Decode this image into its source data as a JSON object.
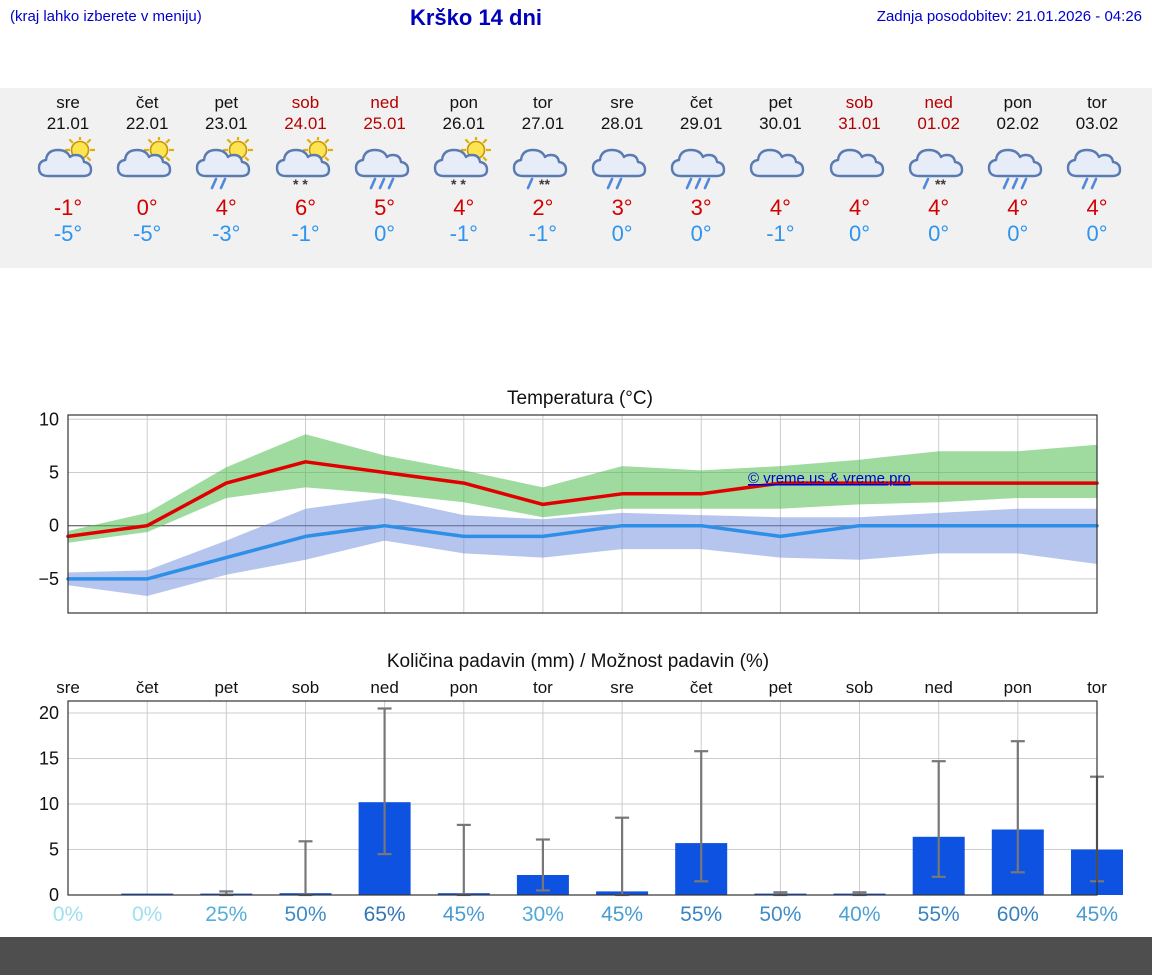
{
  "header": {
    "menu_hint": "(kraj lahko izberete v meniju)",
    "title": "Krško 14 dni",
    "last_update": "Zadnja posodobitev: 21.01.2026 - 04:26"
  },
  "colors": {
    "header_text": "#0000cc",
    "strip_bg": "#f1f1f1",
    "tmax": "#d40000",
    "tmin": "#2d95f0",
    "weekend": "#b50000",
    "footer_bg": "#4e4e4e"
  },
  "forecast": {
    "days": [
      {
        "day": "sre",
        "date": "21.01",
        "weekend": false,
        "icon": "sun-cloud",
        "tmax": "-1°",
        "tmin": "-5°"
      },
      {
        "day": "čet",
        "date": "22.01",
        "weekend": false,
        "icon": "sun-cloud",
        "tmax": "0°",
        "tmin": "-5°"
      },
      {
        "day": "pet",
        "date": "23.01",
        "weekend": false,
        "icon": "sun-cloud-rain2",
        "tmax": "4°",
        "tmin": "-3°"
      },
      {
        "day": "sob",
        "date": "24.01",
        "weekend": true,
        "icon": "sun-cloud-snow2",
        "tmax": "6°",
        "tmin": "-1°"
      },
      {
        "day": "ned",
        "date": "25.01",
        "weekend": true,
        "icon": "cloud-rain3",
        "tmax": "5°",
        "tmin": "0°"
      },
      {
        "day": "pon",
        "date": "26.01",
        "weekend": false,
        "icon": "sun-cloud-snow2",
        "tmax": "4°",
        "tmin": "-1°"
      },
      {
        "day": "tor",
        "date": "27.01",
        "weekend": false,
        "icon": "cloud-sleet",
        "tmax": "2°",
        "tmin": "-1°"
      },
      {
        "day": "sre",
        "date": "28.01",
        "weekend": false,
        "icon": "cloud-rain2",
        "tmax": "3°",
        "tmin": "0°"
      },
      {
        "day": "čet",
        "date": "29.01",
        "weekend": false,
        "icon": "cloud-rain3",
        "tmax": "3°",
        "tmin": "0°"
      },
      {
        "day": "pet",
        "date": "30.01",
        "weekend": false,
        "icon": "cloud",
        "tmax": "4°",
        "tmin": "-1°"
      },
      {
        "day": "sob",
        "date": "31.01",
        "weekend": true,
        "icon": "cloud",
        "tmax": "4°",
        "tmin": "0°"
      },
      {
        "day": "ned",
        "date": "01.02",
        "weekend": true,
        "icon": "cloud-sleet",
        "tmax": "4°",
        "tmin": "0°"
      },
      {
        "day": "pon",
        "date": "02.02",
        "weekend": false,
        "icon": "cloud-rain3",
        "tmax": "4°",
        "tmin": "0°"
      },
      {
        "day": "tor",
        "date": "03.02",
        "weekend": false,
        "icon": "cloud-rain2",
        "tmax": "4°",
        "tmin": "0°"
      }
    ]
  },
  "chart_data": [
    {
      "type": "line",
      "title": "Temperatura (°C)",
      "watermark": "© vreme.us & vreme.pro",
      "x_days": [
        "sre",
        "čet",
        "pet",
        "sob",
        "ned",
        "pon",
        "tor",
        "sre",
        "čet",
        "pet",
        "sob",
        "ned",
        "pon",
        "tor"
      ],
      "ylim": [
        -8.2,
        10.4
      ],
      "yticks": [
        -5,
        0,
        5,
        10
      ],
      "grid": true,
      "series": [
        {
          "name": "max temperatura",
          "color": "#e00000",
          "values": [
            -1,
            0,
            4,
            6,
            5,
            4,
            2,
            3,
            3,
            4,
            4,
            4,
            4,
            4
          ]
        },
        {
          "name": "min temperatura",
          "color": "#2e8fe8",
          "values": [
            -5,
            -5,
            -3,
            -1,
            0,
            -1,
            -1,
            0,
            0,
            -1,
            0,
            0,
            0,
            0
          ]
        }
      ],
      "bands": [
        {
          "name": "max range",
          "color": "rgba(80,190,80,0.55)",
          "upper": [
            -0.5,
            1.2,
            5.5,
            8.6,
            6.6,
            5.2,
            3.6,
            5.6,
            5.2,
            5.6,
            6.2,
            7.0,
            7.0,
            7.6
          ],
          "lower": [
            -1.6,
            -0.6,
            2.6,
            3.6,
            3.0,
            2.2,
            0.8,
            1.6,
            1.6,
            1.6,
            2.0,
            2.2,
            2.6,
            2.6
          ]
        },
        {
          "name": "min range",
          "color": "rgba(110,140,220,0.5)",
          "upper": [
            -4.4,
            -4.2,
            -1.4,
            1.6,
            2.6,
            1.0,
            0.6,
            1.2,
            1.0,
            0.8,
            0.8,
            1.2,
            1.6,
            1.6
          ],
          "lower": [
            -5.6,
            -6.6,
            -4.6,
            -3.2,
            -1.4,
            -2.6,
            -3.0,
            -2.2,
            -2.2,
            -3.0,
            -3.2,
            -2.6,
            -2.6,
            -3.6
          ]
        }
      ]
    },
    {
      "type": "bar",
      "title": "Količina padavin (mm) / Možnost padavin (%)",
      "categories": [
        "sre",
        "čet",
        "pet",
        "sob",
        "ned",
        "pon",
        "tor",
        "sre",
        "čet",
        "pet",
        "sob",
        "ned",
        "pon",
        "tor"
      ],
      "values": [
        0,
        0.1,
        0.1,
        0.2,
        10.2,
        0.2,
        2.2,
        0.4,
        5.7,
        0.1,
        0.1,
        6.4,
        7.2,
        5.0
      ],
      "whisker_upper": [
        0,
        0,
        0.4,
        5.9,
        20.5,
        7.7,
        6.1,
        8.5,
        15.8,
        0.3,
        0.3,
        14.7,
        16.9,
        13.0
      ],
      "whisker_lower": [
        0,
        0,
        0,
        0,
        4.5,
        0,
        0.5,
        0,
        1.5,
        0,
        0,
        2.0,
        2.5,
        1.5
      ],
      "probabilities": [
        "0%",
        "0%",
        "25%",
        "50%",
        "65%",
        "45%",
        "30%",
        "45%",
        "55%",
        "50%",
        "40%",
        "55%",
        "60%",
        "45%"
      ],
      "prob_colors": [
        "#9edff0",
        "#9edff0",
        "#55aeda",
        "#3f8cc8",
        "#3375b8",
        "#4a9bd0",
        "#52a8d6",
        "#4a9bd0",
        "#3b84c2",
        "#3f8cc8",
        "#4da1d2",
        "#3b84c2",
        "#3880be",
        "#4a9bd0"
      ],
      "ylim": [
        0,
        21.3
      ],
      "yticks": [
        0,
        5,
        10,
        15,
        20
      ],
      "bar_color": "#0d52e0",
      "grid": true
    }
  ]
}
